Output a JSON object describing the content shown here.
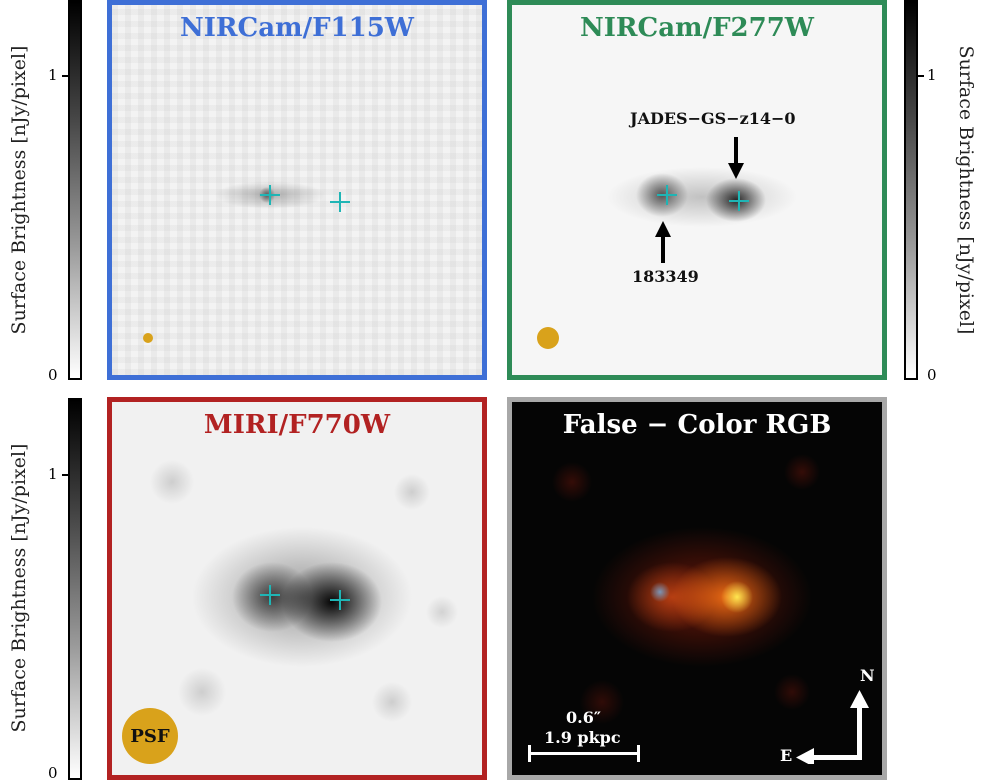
{
  "panels": [
    {
      "title": "NIRCam/F115W",
      "border_color": "#3e6fd6",
      "title_color": "#3e6fd6"
    },
    {
      "title": "NIRCam/F277W",
      "border_color": "#2e8b57",
      "title_color": "#2e8b57"
    },
    {
      "title": "MIRI/F770W",
      "border_color": "#b22222",
      "title_color": "#b22222"
    },
    {
      "title": "False − Color RGB",
      "border_color": "#a8a8a8",
      "title_color": "#ffffff"
    }
  ],
  "colorbar": {
    "label": "Surface Brightness  [nJy/pixel]",
    "tick_top": "1",
    "tick_bottom": "0"
  },
  "annotations": {
    "target": "JADES−GS−z14−0",
    "neighbor": "183349",
    "psf_label": "PSF"
  },
  "scalebar": {
    "angle": "0.6″",
    "distance": "1.9 pkpc"
  },
  "compass": {
    "north": "N",
    "east": "E"
  },
  "colors": {
    "psf_circle": "#d9a21b",
    "marker": "#1fb5b5"
  }
}
